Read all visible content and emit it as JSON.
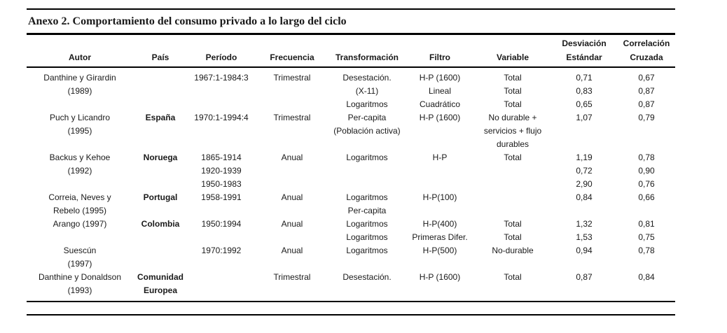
{
  "title": "Anexo 2. Comportamiento del consumo privado a lo largo del ciclo",
  "table": {
    "header_top": [
      "",
      "",
      "",
      "",
      "",
      "",
      "",
      "Desviación",
      "Correlación"
    ],
    "header_bottom": [
      "Autor",
      "País",
      "Período",
      "Frecuencia",
      "Transformación",
      "Filtro",
      "Variable",
      "Estándar",
      "Cruzada"
    ],
    "rows": [
      [
        "Danthine y Girardin",
        "",
        "1967:1-1984:3",
        "Trimestral",
        "Desestación.",
        "H-P (1600)",
        "Total",
        "0,71",
        "0,67"
      ],
      [
        "(1989)",
        "",
        "",
        "",
        "(X-11)",
        "Lineal",
        "Total",
        "0,83",
        "0,87"
      ],
      [
        "",
        "",
        "",
        "",
        "Logaritmos",
        "Cuadrático",
        "Total",
        "0,65",
        "0,87"
      ],
      [
        "Puch y Licandro",
        "España",
        "1970:1-1994:4",
        "Trimestral",
        "Per-capita",
        "H-P (1600)",
        "No durable +",
        "1,07",
        "0,79"
      ],
      [
        "(1995)",
        "",
        "",
        "",
        "(Población activa)",
        "",
        "servicios + flujo",
        "",
        ""
      ],
      [
        "",
        "",
        "",
        "",
        "",
        "",
        "durables",
        "",
        ""
      ],
      [
        "Backus y Kehoe",
        "Noruega",
        "1865-1914",
        "Anual",
        "Logaritmos",
        "H-P",
        "Total",
        "1,19",
        "0,78"
      ],
      [
        "(1992)",
        "",
        "1920-1939",
        "",
        "",
        "",
        "",
        "0,72",
        "0,90"
      ],
      [
        "",
        "",
        "1950-1983",
        "",
        "",
        "",
        "",
        "2,90",
        "0,76"
      ],
      [
        "Correia, Neves y",
        "Portugal",
        "1958-1991",
        "Anual",
        "Logaritmos",
        "H-P(100)",
        "",
        "0,84",
        "0,66"
      ],
      [
        "Rebelo (1995)",
        "",
        "",
        "",
        "Per-capita",
        "",
        "",
        "",
        ""
      ],
      [
        "Arango (1997)",
        "Colombia",
        "1950:1994",
        "Anual",
        "Logaritmos",
        "H-P(400)",
        "Total",
        "1,32",
        "0,81"
      ],
      [
        "",
        "",
        "",
        "",
        "Logaritmos",
        "Primeras Difer.",
        "Total",
        "1,53",
        "0,75"
      ],
      [
        "Suescún",
        "",
        "1970:1992",
        "Anual",
        "Logaritmos",
        "H-P(500)",
        "No-durable",
        "0,94",
        "0,78"
      ],
      [
        "(1997)",
        "",
        "",
        "",
        "",
        "",
        "",
        "",
        ""
      ],
      [
        "Danthine y Donaldson",
        "Comunidad",
        "",
        "Trimestral",
        "Desestación.",
        "H-P (1600)",
        "Total",
        "0,87",
        "0,84"
      ],
      [
        "(1993)",
        "Europea",
        "",
        "",
        "",
        "",
        "",
        "",
        ""
      ]
    ]
  }
}
